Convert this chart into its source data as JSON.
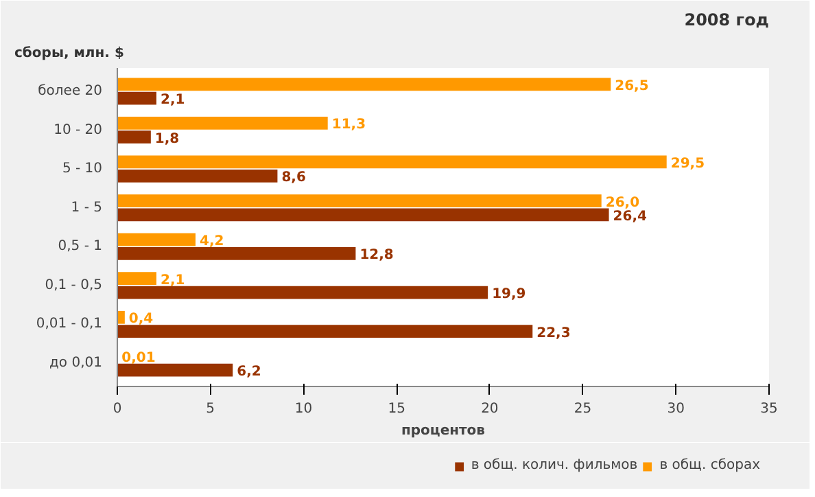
{
  "chart_data": {
    "type": "bar",
    "orientation": "horizontal",
    "title": "2008 год",
    "ylabel": "сборы, млн. $",
    "xlabel": "процентов",
    "categories": [
      "более 20",
      "10 - 20",
      "5 - 10",
      "1 - 5",
      "0,5 - 1",
      "0,1 - 0,5",
      "0,01 - 0,1",
      "до 0,01"
    ],
    "series": [
      {
        "name": "в общ. сборах",
        "color": "#ff9900",
        "values": [
          26.5,
          11.3,
          29.5,
          26.0,
          4.2,
          2.1,
          0.4,
          0.01
        ],
        "value_labels": [
          "26,5",
          "11,3",
          "29,5",
          "26,0",
          "4,2",
          "2,1",
          "0,4",
          "0,01"
        ]
      },
      {
        "name": "в общ. колич. фильмов",
        "color": "#993300",
        "values": [
          2.1,
          1.8,
          8.6,
          26.4,
          12.8,
          19.9,
          22.3,
          6.2
        ],
        "value_labels": [
          "2,1",
          "1,8",
          "8,6",
          "26,4",
          "12,8",
          "19,9",
          "22,3",
          "6,2"
        ]
      }
    ],
    "xlim": [
      0,
      35
    ],
    "xticks": [
      0,
      5,
      10,
      15,
      20,
      25,
      30,
      35
    ],
    "legend": "bottom right",
    "grid": false
  }
}
